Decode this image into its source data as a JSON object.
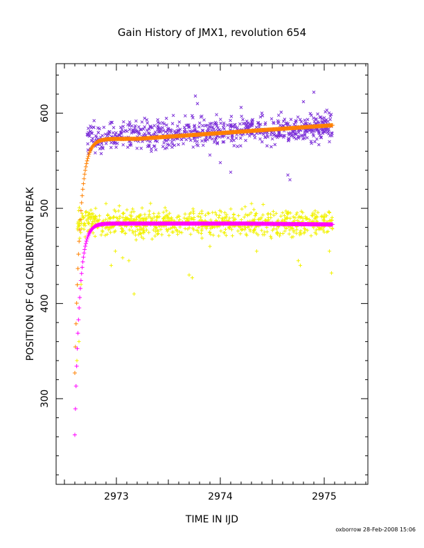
{
  "chart_data": {
    "type": "scatter",
    "title": "Gain History of JMX1, revolution 654",
    "xlabel": "TIME IN IJD",
    "ylabel": "POSITION OF Cd CALIBRATION PEAK",
    "footer": "oxborrow 28-Feb-2008 15:06",
    "xlim": [
      2972.42,
      2975.42
    ],
    "ylim": [
      210,
      652
    ],
    "x_ticks": [
      2973,
      2974,
      2975
    ],
    "x_tick_labels": [
      "2973",
      "2974",
      "2975"
    ],
    "y_ticks": [
      300,
      400,
      500,
      600
    ],
    "y_tick_labels": [
      "300",
      "400",
      "500",
      "600"
    ],
    "grid": false,
    "legend": "none",
    "series": [
      {
        "marker": "x",
        "color": "#7b2fd8",
        "x_range": [
          2972.72,
          2975.08
        ],
        "y_level": 575,
        "y_spread_range": [
          530,
          622
        ],
        "points": [
          [
            2972.72,
            578
          ],
          [
            2972.73,
            584
          ],
          [
            2972.75,
            562
          ],
          [
            2972.78,
            585
          ],
          [
            2973.0,
            575
          ],
          [
            2973.3,
            565
          ],
          [
            2973.5,
            572
          ],
          [
            2973.76,
            618
          ],
          [
            2973.78,
            610
          ],
          [
            2973.9,
            556
          ],
          [
            2974.0,
            548
          ],
          [
            2974.1,
            538
          ],
          [
            2974.2,
            606
          ],
          [
            2974.4,
            600
          ],
          [
            2974.65,
            535
          ],
          [
            2974.67,
            530
          ],
          [
            2974.8,
            612
          ],
          [
            2974.9,
            622
          ],
          [
            2975.0,
            595
          ],
          [
            2975.05,
            570
          ]
        ]
      },
      {
        "marker": "+",
        "color": "#f2f200",
        "x_range": [
          2972.62,
          2975.08
        ],
        "y_level": 485,
        "y_spread_range": [
          408,
          514
        ],
        "points": [
          [
            2972.62,
            340
          ],
          [
            2972.64,
            360
          ],
          [
            2972.66,
            420
          ],
          [
            2972.7,
            470
          ],
          [
            2972.8,
            500
          ],
          [
            2972.9,
            505
          ],
          [
            2972.95,
            440
          ],
          [
            2972.99,
            455
          ],
          [
            2973.06,
            448
          ],
          [
            2973.12,
            445
          ],
          [
            2973.17,
            410
          ],
          [
            2973.7,
            430
          ],
          [
            2973.73,
            427
          ],
          [
            2973.9,
            460
          ],
          [
            2974.3,
            505
          ],
          [
            2974.35,
            455
          ],
          [
            2974.55,
            473
          ],
          [
            2974.75,
            445
          ],
          [
            2974.77,
            440
          ],
          [
            2975.05,
            455
          ],
          [
            2975.07,
            432
          ]
        ]
      },
      {
        "marker": "+",
        "color": "#ff8000",
        "curve": "fit",
        "model": {
          "start": 2972.6,
          "end": 2975.08,
          "y_start": 327,
          "plateau": 573,
          "tau": 0.05,
          "rise_from": 2973.2,
          "slope": 7.6
        }
      },
      {
        "marker": "+",
        "color": "#ff00ff",
        "curve": "fit",
        "model": {
          "start": 2972.6,
          "end": 2975.08,
          "y_start": 262,
          "plateau": 484,
          "tau": 0.045,
          "rise_from": 2974.2,
          "slope": -1.1
        }
      }
    ]
  }
}
